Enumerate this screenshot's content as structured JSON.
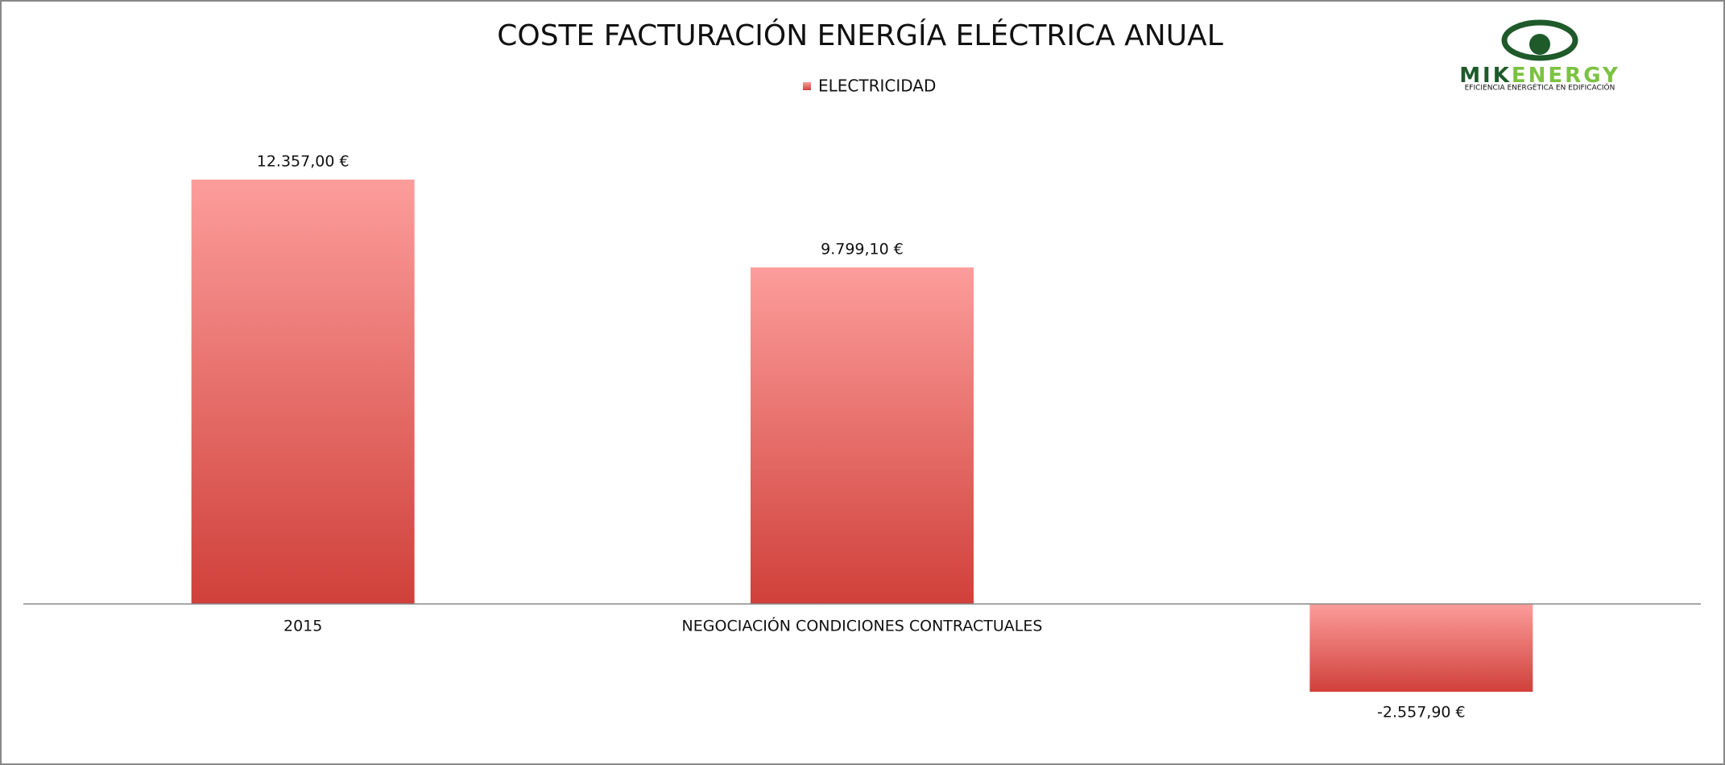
{
  "chart_data": {
    "type": "bar",
    "title": "COSTE FACTURACIÓN ENERGÍA  ELÉCTRICA ANUAL",
    "categories": [
      "2015",
      "NEGOCIACIÓN CONDICIONES CONTRACTUALES",
      null
    ],
    "series": [
      {
        "name": "ELECTRICIDAD",
        "color": "#d9463f",
        "values": [
          12357,
          9799.1,
          -2557.9
        ],
        "value_labels": [
          "12.357,00 €",
          "9.799,10 €",
          "-2.557,90 €"
        ]
      }
    ],
    "legend": "top"
  },
  "logo": {
    "name_parts": [
      "MIK",
      "ENERGY"
    ],
    "tagline": "EFICIENCIA ENERGÉTICA EN EDIFICACIÓN"
  }
}
